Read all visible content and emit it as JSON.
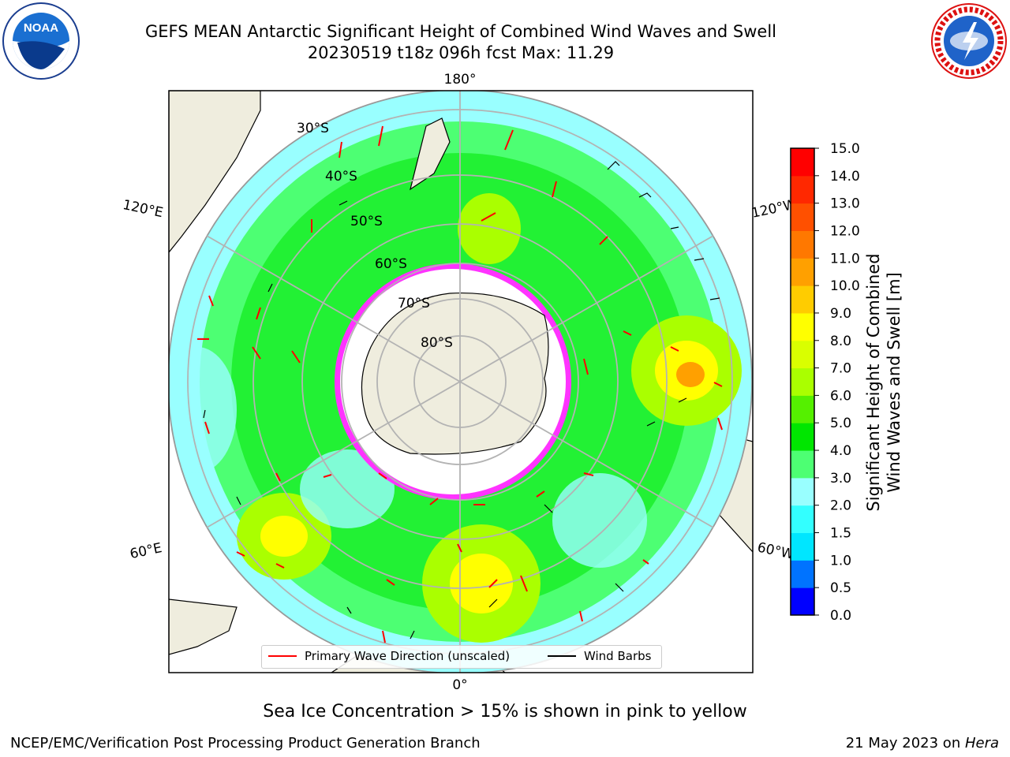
{
  "header": {
    "title_line1": "GEFS MEAN Antarctic Significant Height of Combined Wind Waves and Swell",
    "title_line2": "20230519 t18z 096h fcst   Max: 11.29"
  },
  "logos": {
    "left": "NOAA",
    "right": "NATIONAL WEATHER SERVICE"
  },
  "map": {
    "projection": "south-polar-stereographic",
    "longitude_labels": {
      "top": "180°",
      "bottom": "0°",
      "upper_left": "120°E",
      "lower_left": "60°E",
      "upper_right": "120°W",
      "lower_right": "60°W"
    },
    "latitude_labels": [
      "30°S",
      "40°S",
      "50°S",
      "60°S",
      "70°S",
      "80°S"
    ],
    "colors": {
      "land": "#efedde",
      "antarctica": "#efedde",
      "grid": "#b3b3b3",
      "wave_arrow": "#ff0000",
      "wind_barb": "#000000",
      "sea_ice": "#ff33ff"
    }
  },
  "legend": {
    "wave_label": "Primary Wave Direction (unscaled)",
    "wind_label": "Wind Barbs"
  },
  "colorbar": {
    "label_line1": "Significant Height of Combined",
    "label_line2": "Wind Waves and Swell [m]",
    "ticks": [
      "0.0",
      "0.5",
      "1.0",
      "1.5",
      "2.0",
      "3.0",
      "4.0",
      "5.0",
      "6.0",
      "7.0",
      "8.0",
      "9.0",
      "10.0",
      "11.0",
      "12.0",
      "13.0",
      "14.0",
      "15.0"
    ],
    "colors": [
      "#0000ff",
      "#0073ff",
      "#00e6ff",
      "#33ffff",
      "#99ffff",
      "#4dff73",
      "#00e600",
      "#55f000",
      "#aaff00",
      "#d9ff00",
      "#ffff00",
      "#ffcc00",
      "#ffa000",
      "#ff7800",
      "#ff5000",
      "#ff2800",
      "#ff0000"
    ]
  },
  "footer": {
    "note": "Sea Ice Concentration > 15% is shown in pink to yellow",
    "left": "NCEP/EMC/Verification Post Processing Product Generation Branch",
    "right_prefix": "21 May 2023 on ",
    "right_host": "Hera"
  }
}
